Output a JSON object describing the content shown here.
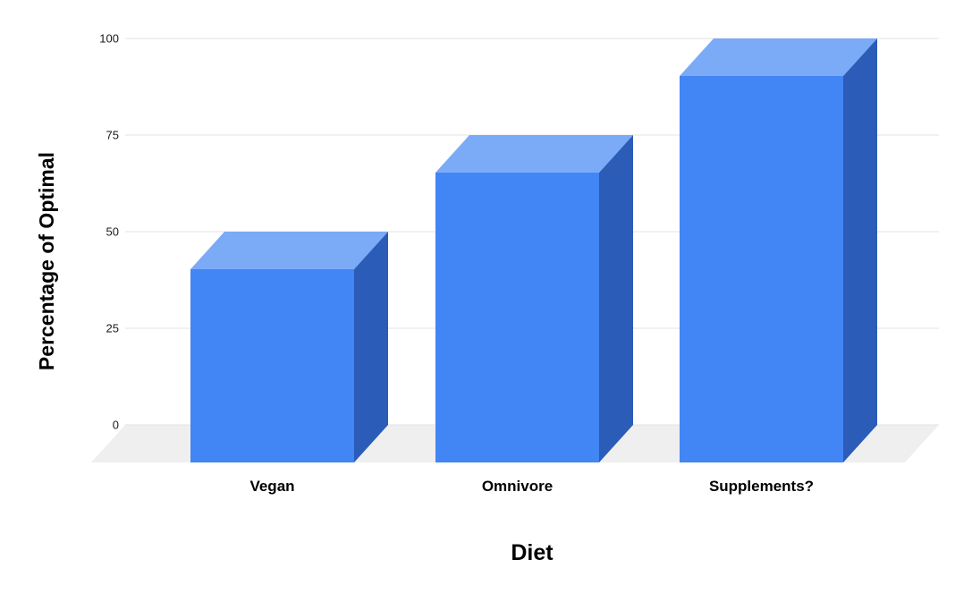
{
  "chart_data": {
    "type": "bar",
    "style": "3d-column",
    "title": "",
    "categories": [
      "Vegan",
      "Omnivore",
      "Supplements?"
    ],
    "values": [
      50,
      75,
      100
    ],
    "xlabel": "Diet",
    "ylabel": "Percentage of Optimal",
    "ylim": [
      0,
      100
    ],
    "yticks": [
      0,
      25,
      50,
      75,
      100
    ],
    "grid": true,
    "legend": "none",
    "colors": {
      "bar_front": "#4285f4",
      "bar_top": "#7baaf7",
      "bar_side": "#2a5cb8",
      "gridline": "#e3e3e3",
      "floor": "#efefef",
      "tick_text": "#1a1a1a",
      "label_text": "#000000",
      "background": "#ffffff"
    }
  }
}
